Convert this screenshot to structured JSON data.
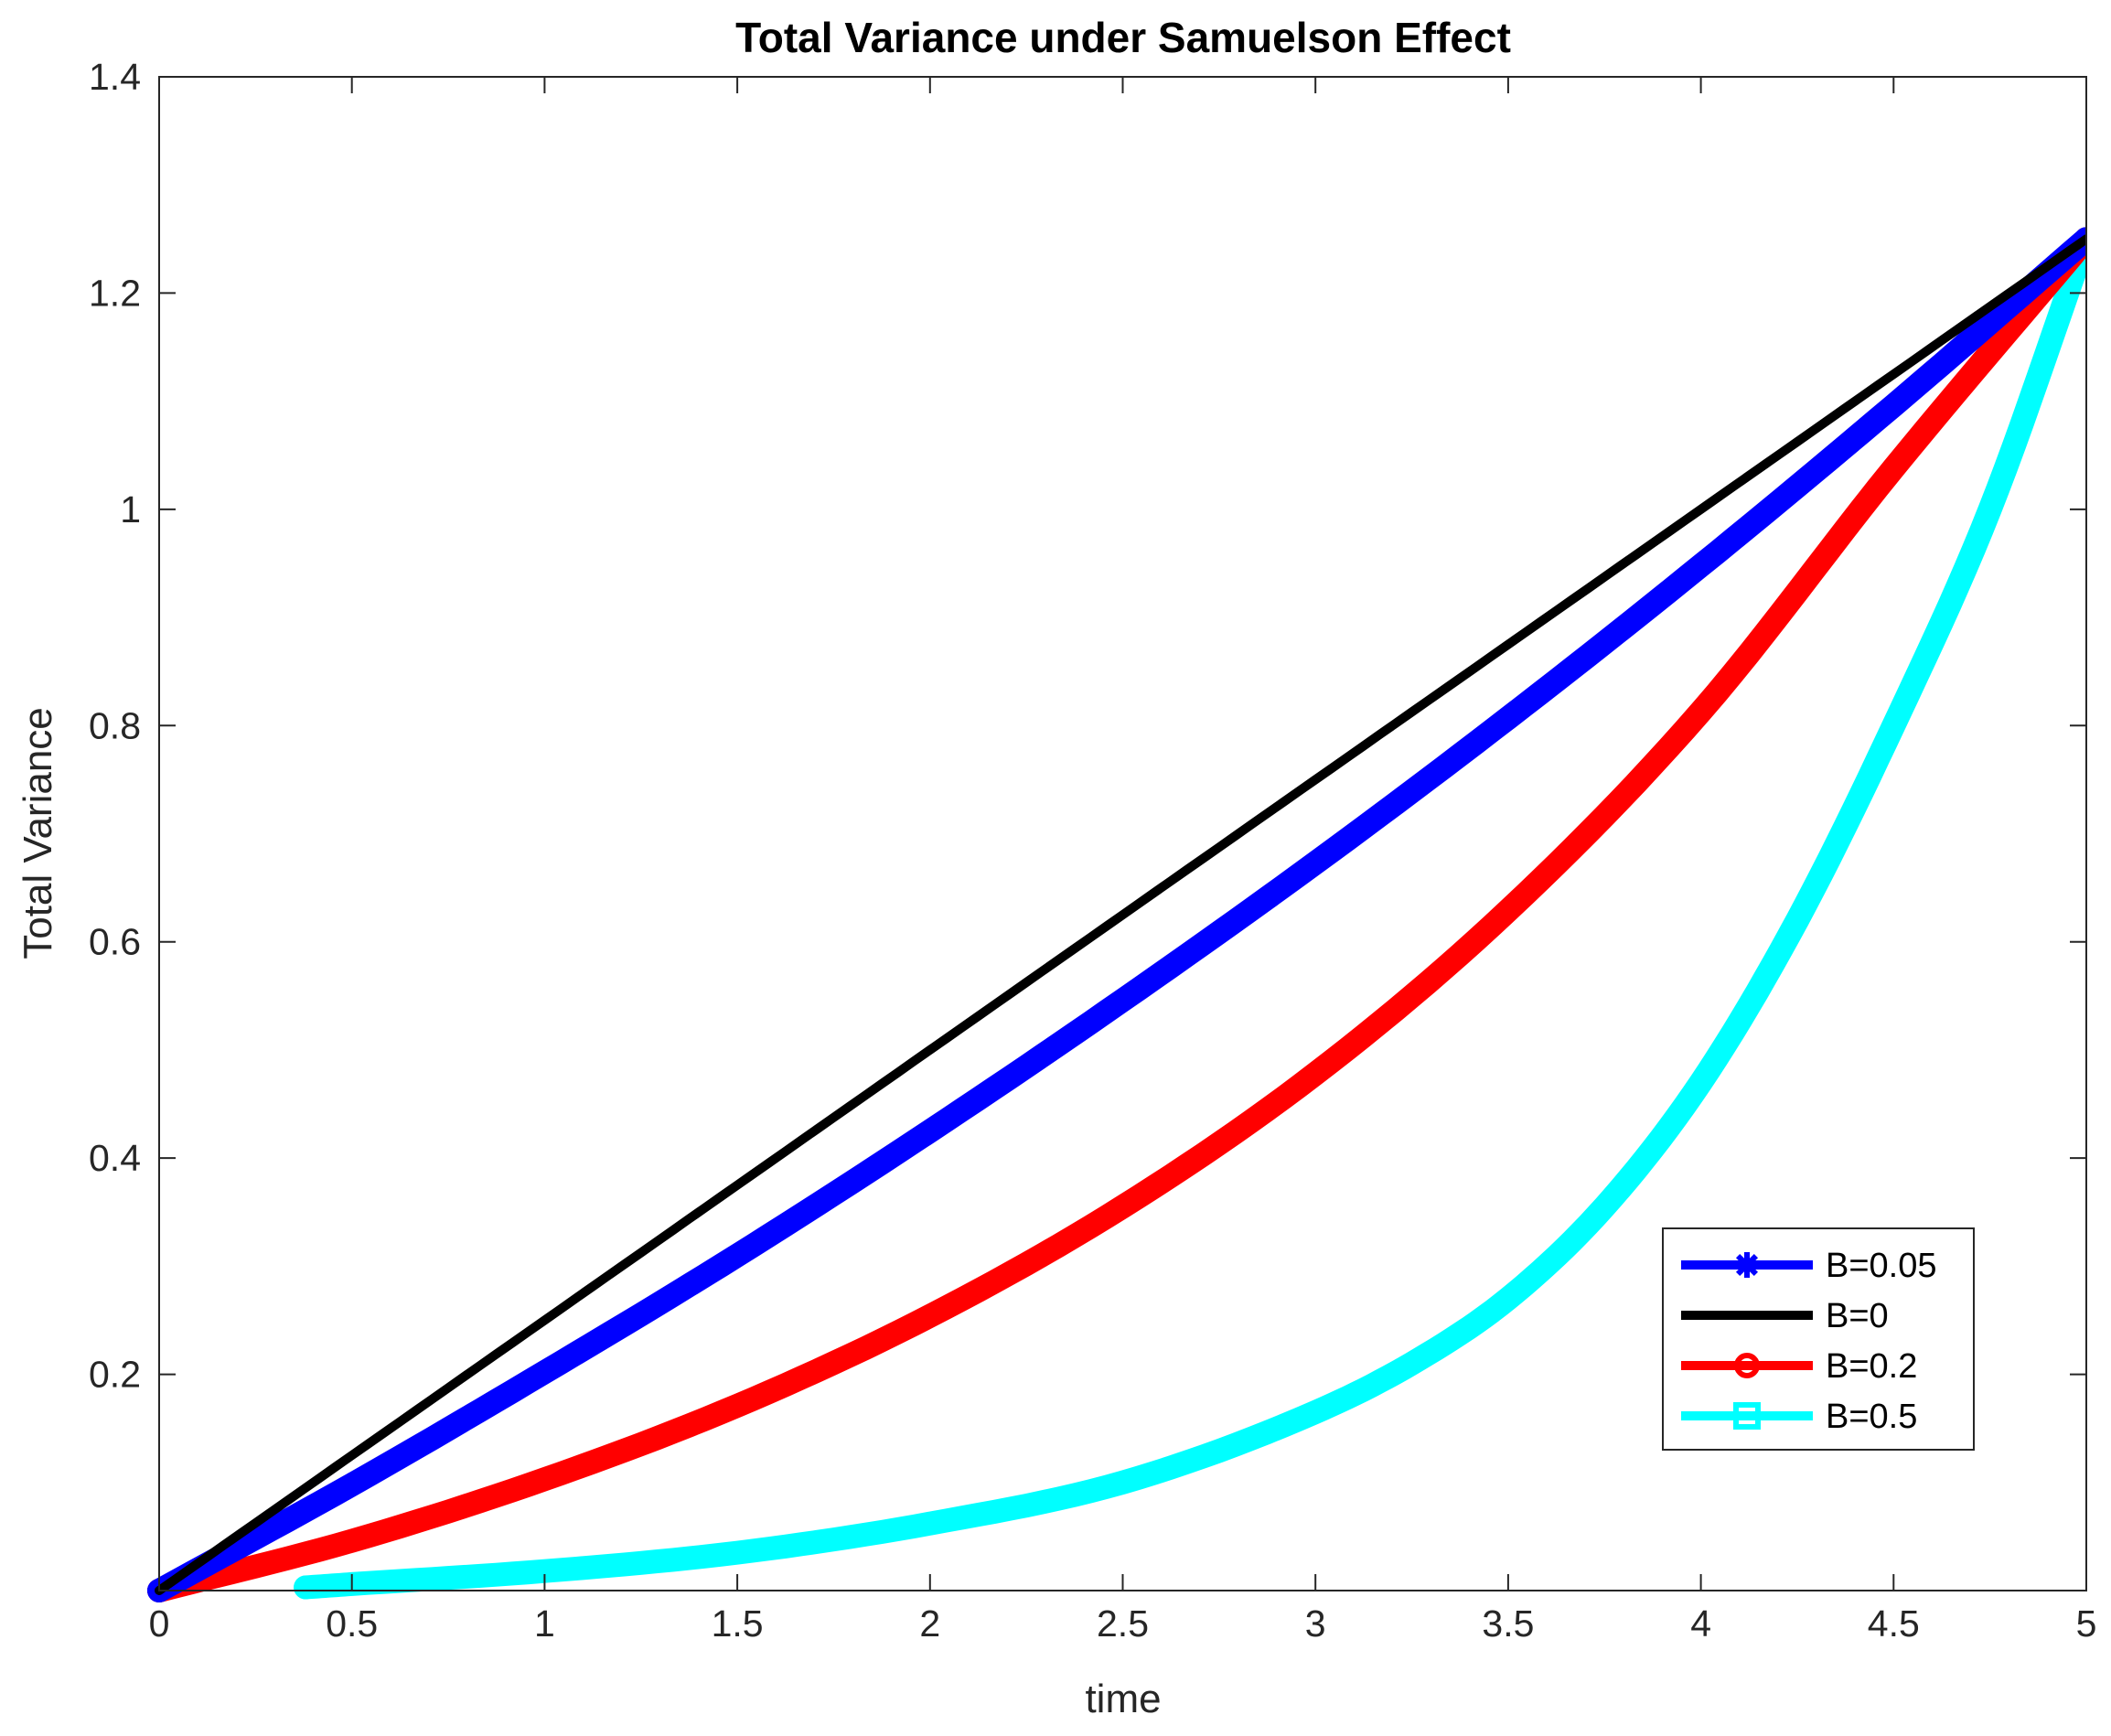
{
  "chart_data": {
    "type": "line",
    "title": "Total Variance under Samuelson Effect",
    "xlabel": "time",
    "ylabel": "Total Variance",
    "xlim": [
      0,
      5
    ],
    "ylim": [
      0,
      1.4
    ],
    "xticks": [
      0,
      0.5,
      1,
      1.5,
      2,
      2.5,
      3,
      3.5,
      4,
      4.5,
      5
    ],
    "xtick_labels": [
      "0",
      "0.5",
      "1",
      "1.5",
      "2",
      "2.5",
      "3",
      "3.5",
      "4",
      "4.5",
      "5"
    ],
    "yticks": [
      0.2,
      0.4,
      0.6,
      0.8,
      1,
      1.2,
      1.4
    ],
    "ytick_labels": [
      "0.2",
      "0.4",
      "0.6",
      "0.8",
      "1",
      "1.2",
      "1.4"
    ],
    "legend_position": "lower-right",
    "series": [
      {
        "name": "B=0.05",
        "label": "B=0.05",
        "color": "#0000ff",
        "marker": "asterisk",
        "x": [
          0.0,
          0.5,
          1.0,
          1.5,
          2.0,
          2.5,
          3.0,
          3.5,
          4.0,
          4.5,
          5.0
        ],
        "values": [
          0.0,
          0.098,
          0.202,
          0.31,
          0.425,
          0.546,
          0.673,
          0.807,
          0.948,
          1.096,
          1.25
        ]
      },
      {
        "name": "B=0",
        "label": "B=0",
        "color": "#000000",
        "marker": "none",
        "x": [
          0.0,
          0.5,
          1.0,
          1.5,
          2.0,
          2.5,
          3.0,
          3.5,
          4.0,
          4.5,
          5.0
        ],
        "values": [
          0.0,
          0.125,
          0.25,
          0.375,
          0.5,
          0.625,
          0.75,
          0.875,
          1.0,
          1.125,
          1.25
        ]
      },
      {
        "name": "B=0.2",
        "label": "B=0.2",
        "color": "#ff0000",
        "marker": "circle",
        "x": [
          0.0,
          0.5,
          1.0,
          1.5,
          2.0,
          2.5,
          3.0,
          3.5,
          4.0,
          4.5,
          5.0
        ],
        "values": [
          0.0,
          0.046,
          0.103,
          0.171,
          0.254,
          0.355,
          0.478,
          0.629,
          0.813,
          1.038,
          1.25
        ]
      },
      {
        "name": "B=0.5",
        "label": "B=0.5",
        "color": "#00ffff",
        "marker": "square",
        "x": [
          0.38,
          0.5,
          1.0,
          1.5,
          2.0,
          2.5,
          3.0,
          3.25,
          3.5,
          3.75,
          4.0,
          4.25,
          4.5,
          4.75,
          5.0
        ],
        "values": [
          0.003,
          0.006,
          0.018,
          0.035,
          0.062,
          0.1,
          0.165,
          0.21,
          0.27,
          0.355,
          0.47,
          0.62,
          0.8,
          1.0,
          1.25
        ]
      }
    ]
  }
}
